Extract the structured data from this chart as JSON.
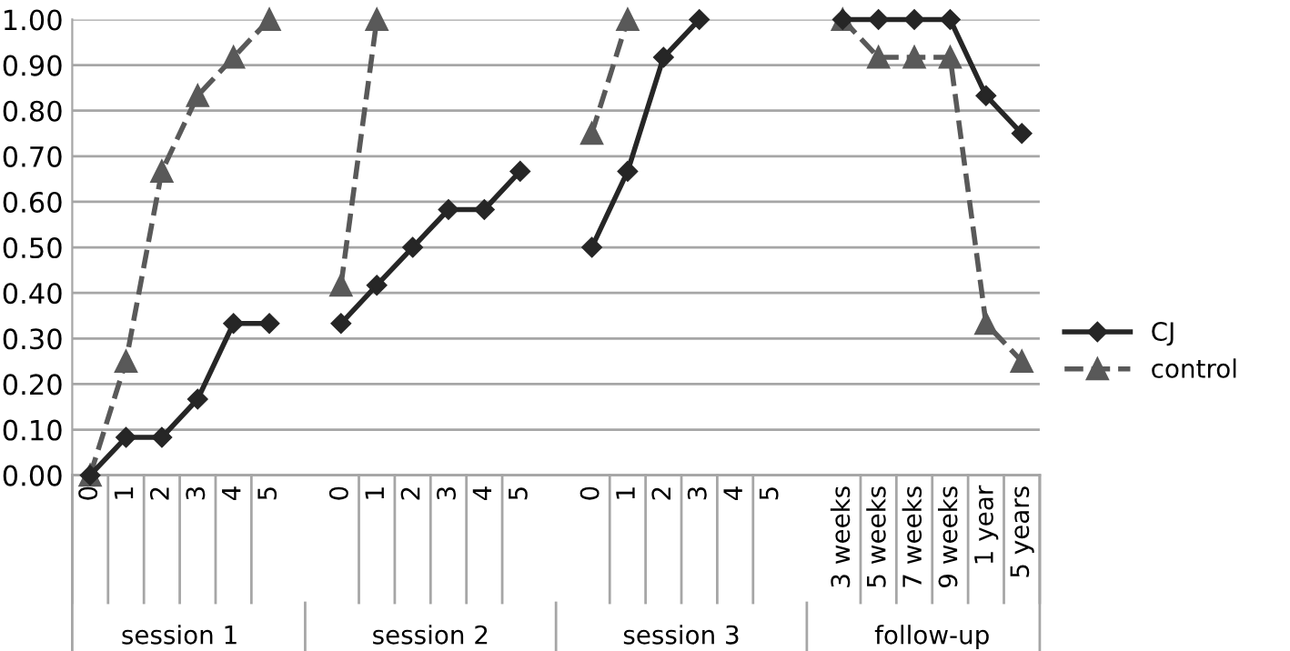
{
  "chart_data": {
    "type": "line",
    "categories": [
      "0",
      "1",
      "2",
      "3",
      "4",
      "5",
      null,
      "0",
      "1",
      "2",
      "3",
      "4",
      "5",
      null,
      "0",
      "1",
      "2",
      "3",
      "4",
      "5",
      null,
      "3 weeks",
      "5 weeks",
      "7 weeks",
      "9 weeks",
      "1 year",
      "5 years"
    ],
    "series": [
      {
        "name": "CJ",
        "color": "#262626",
        "marker": "diamond",
        "line_style": "solid",
        "values": [
          0,
          0.083,
          0.083,
          0.167,
          0.333,
          0.333,
          null,
          0.333,
          0.417,
          0.5,
          0.583,
          0.583,
          0.667,
          null,
          0.5,
          0.667,
          0.917,
          1.0,
          null,
          null,
          null,
          1.0,
          1.0,
          1.0,
          1.0,
          0.833,
          0.75
        ]
      },
      {
        "name": "control",
        "color": "#595959",
        "marker": "triangle",
        "line_style": "dashed",
        "values": [
          0,
          0.25,
          0.667,
          0.833,
          0.917,
          1.0,
          null,
          0.417,
          1.0,
          null,
          null,
          null,
          null,
          null,
          0.75,
          1.0,
          null,
          null,
          null,
          null,
          null,
          1.0,
          0.917,
          0.917,
          0.917,
          0.333,
          0.25
        ]
      }
    ],
    "ylim": [
      0,
      1
    ],
    "yticks": [
      {
        "value": 0,
        "label": "0.00"
      },
      {
        "value": 0.1,
        "label": "0.10"
      },
      {
        "value": 0.2,
        "label": "0.20"
      },
      {
        "value": 0.3,
        "label": "0.30"
      },
      {
        "value": 0.4,
        "label": "0.40"
      },
      {
        "value": 0.5,
        "label": "0.50"
      },
      {
        "value": 0.6,
        "label": "0.60"
      },
      {
        "value": 0.7,
        "label": "0.70"
      },
      {
        "value": 0.8,
        "label": "0.80"
      },
      {
        "value": 0.9,
        "label": "0.90"
      },
      {
        "value": 1.0,
        "label": "1.00"
      }
    ],
    "grid": "y",
    "legend": "right",
    "annotations": [
      "session 1",
      "session 2",
      "session 3",
      "follow-up"
    ]
  }
}
